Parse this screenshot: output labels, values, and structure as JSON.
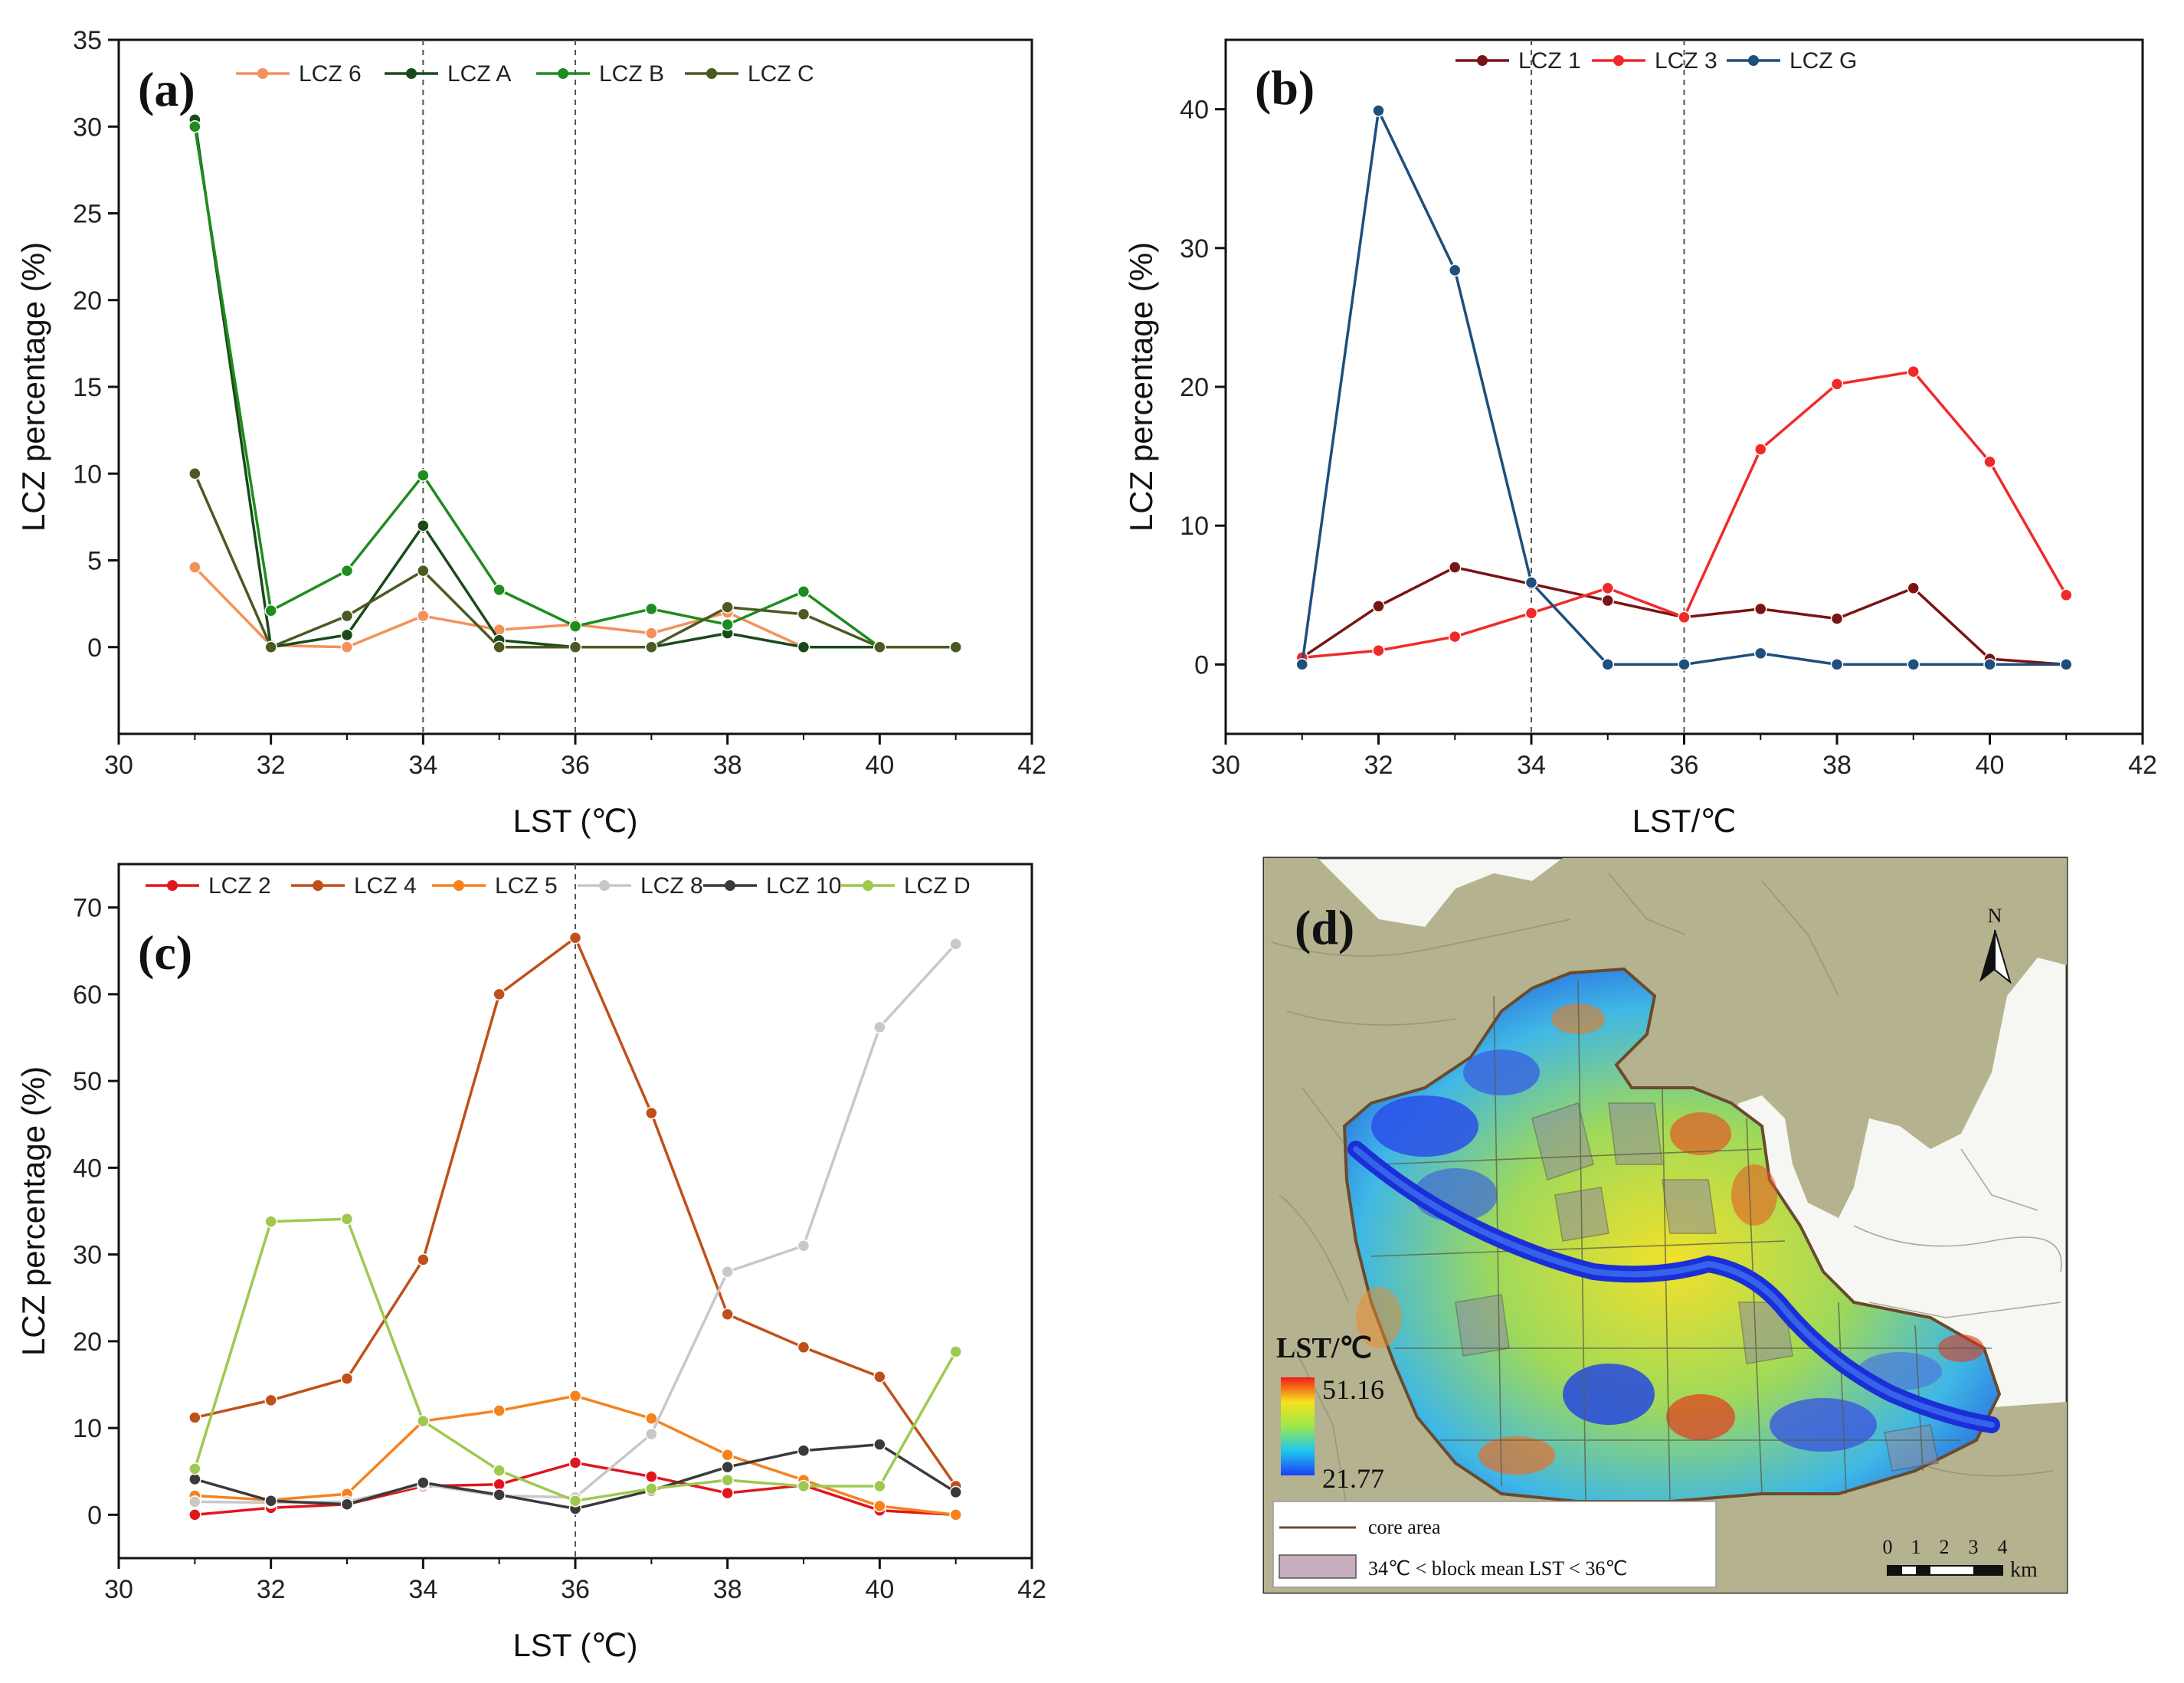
{
  "chart_data": [
    {
      "panel": "(a)",
      "type": "line",
      "xlabel": "LST (℃)",
      "ylabel": "LCZ percentage (%)",
      "xlim": [
        30,
        42
      ],
      "ylim": [
        -5,
        35
      ],
      "xticks": [
        30,
        32,
        34,
        36,
        38,
        40,
        42
      ],
      "yticks": [
        0,
        5,
        10,
        15,
        20,
        25,
        30,
        35
      ],
      "vlines": [
        34,
        36
      ],
      "x": [
        31,
        32,
        33,
        34,
        35,
        36,
        37,
        38,
        39,
        40,
        41
      ],
      "series": [
        {
          "name": "LCZ 6",
          "color": "#f4915a",
          "values": [
            4.6,
            0.1,
            0.0,
            1.8,
            1.0,
            1.3,
            0.8,
            2.0,
            0.0,
            0.0,
            0.0
          ]
        },
        {
          "name": "LCZ A",
          "color": "#1a4a1a",
          "values": [
            30.4,
            0.0,
            0.7,
            7.0,
            0.4,
            0.0,
            0.0,
            0.8,
            0.0,
            0.0,
            0.0
          ]
        },
        {
          "name": "LCZ B",
          "color": "#1e8c1e",
          "values": [
            30.0,
            2.1,
            4.4,
            9.9,
            3.3,
            1.2,
            2.2,
            1.3,
            3.2,
            0.0,
            0.0
          ]
        },
        {
          "name": "LCZ C",
          "color": "#4a5a22",
          "values": [
            10.0,
            0.0,
            1.8,
            4.4,
            0.0,
            0.0,
            0.0,
            2.3,
            1.9,
            0.0,
            0.0
          ]
        }
      ]
    },
    {
      "panel": "(b)",
      "type": "line",
      "xlabel": "LST/℃",
      "ylabel": "LCZ percentage (%)",
      "xlim": [
        30,
        42
      ],
      "ylim": [
        -5,
        45
      ],
      "xticks": [
        30,
        32,
        34,
        36,
        38,
        40,
        42
      ],
      "yticks": [
        0,
        10,
        20,
        30,
        40
      ],
      "vlines": [
        34,
        36
      ],
      "x": [
        31,
        32,
        33,
        34,
        35,
        36,
        37,
        38,
        39,
        40,
        41
      ],
      "series": [
        {
          "name": "LCZ 1",
          "color": "#7a1414",
          "values": [
            0.5,
            4.2,
            7.0,
            5.8,
            4.6,
            3.4,
            4.0,
            3.3,
            5.5,
            0.4,
            0.0
          ]
        },
        {
          "name": "LCZ 3",
          "color": "#f02a2a",
          "values": [
            0.5,
            1.0,
            2.0,
            3.7,
            5.5,
            3.4,
            15.5,
            20.2,
            21.1,
            14.6,
            5.0
          ]
        },
        {
          "name": "LCZ G",
          "color": "#1e4f7d",
          "values": [
            0.0,
            39.9,
            28.4,
            5.9,
            0.0,
            0.0,
            0.8,
            0.0,
            0.0,
            0.0,
            0.0
          ]
        }
      ]
    },
    {
      "panel": "(c)",
      "type": "line",
      "xlabel": "LST (℃)",
      "ylabel": "LCZ percentage (%)",
      "xlim": [
        30,
        42
      ],
      "ylim": [
        -5,
        75
      ],
      "xticks": [
        30,
        32,
        34,
        36,
        38,
        40,
        42
      ],
      "yticks": [
        0,
        10,
        20,
        30,
        40,
        50,
        60,
        70
      ],
      "vlines": [
        36
      ],
      "x": [
        31,
        32,
        33,
        34,
        35,
        36,
        37,
        38,
        39,
        40,
        41
      ],
      "series": [
        {
          "name": "LCZ 2",
          "color": "#e0161c",
          "values": [
            0.0,
            0.8,
            1.2,
            3.3,
            3.5,
            6.0,
            4.4,
            2.5,
            3.4,
            0.5,
            0.0
          ]
        },
        {
          "name": "LCZ 4",
          "color": "#c0501a",
          "values": [
            11.2,
            13.2,
            15.7,
            29.4,
            60.0,
            66.5,
            46.3,
            23.1,
            19.3,
            15.9,
            3.3
          ]
        },
        {
          "name": "LCZ 5",
          "color": "#f6821e",
          "values": [
            2.2,
            1.7,
            2.4,
            10.8,
            12.0,
            13.7,
            11.1,
            6.9,
            4.0,
            1.0,
            0.0
          ]
        },
        {
          "name": "LCZ 8",
          "color": "#c8c8c8",
          "values": [
            1.5,
            1.4,
            1.5,
            3.5,
            2.2,
            2.0,
            9.3,
            28.0,
            31.0,
            56.2,
            65.8
          ]
        },
        {
          "name": "LCZ 10",
          "color": "#3a3a3a",
          "values": [
            4.1,
            1.6,
            1.2,
            3.7,
            2.3,
            0.7,
            2.8,
            5.5,
            7.4,
            8.1,
            2.6
          ]
        },
        {
          "name": "LCZ D",
          "color": "#9dc94f",
          "values": [
            5.3,
            33.8,
            34.1,
            10.8,
            5.1,
            1.6,
            3.0,
            4.0,
            3.3,
            3.3,
            18.8
          ]
        }
      ]
    }
  ],
  "map": {
    "panel": "(d)",
    "north": "N",
    "colorbar_title": "LST/℃",
    "colorbar_max": "51.16",
    "colorbar_min": "21.77",
    "legend_core": "core area",
    "legend_block": "34℃ < block mean LST < 36℃",
    "scale_numbers": [
      "0",
      "1",
      "2",
      "3",
      "4"
    ],
    "scale_unit": "km"
  }
}
